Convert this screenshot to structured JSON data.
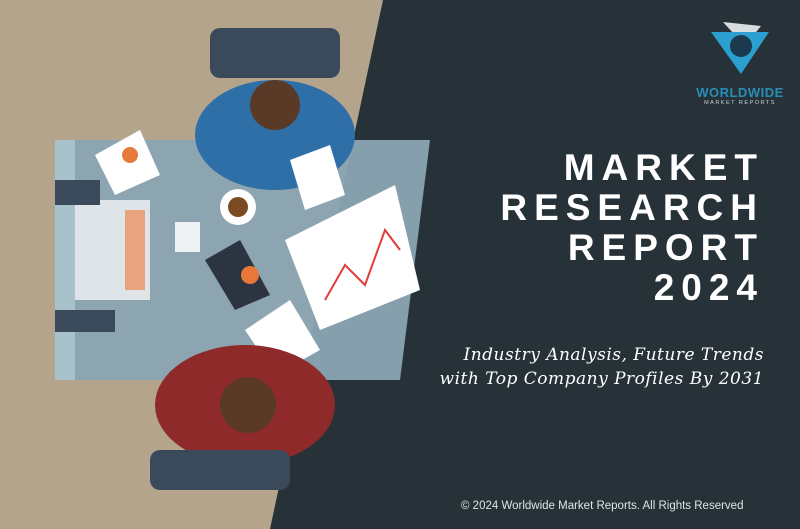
{
  "logo": {
    "name": "WORLDWIDE",
    "tagline": "MARKET REPORTS"
  },
  "title_lines": [
    "MARKET",
    "RESEARCH",
    "REPORT",
    "2024"
  ],
  "subtitle_lines": [
    "Industry Analysis, Future Trends",
    "with Top Company Profiles By 2031"
  ],
  "footer": {
    "copyright": "© 2024 Worldwide Market Reports. All Rights Reserved"
  },
  "colors": {
    "background_dark": "#263238",
    "background_tan": "#b5a48c",
    "brand_blue": "#2a8db8"
  }
}
